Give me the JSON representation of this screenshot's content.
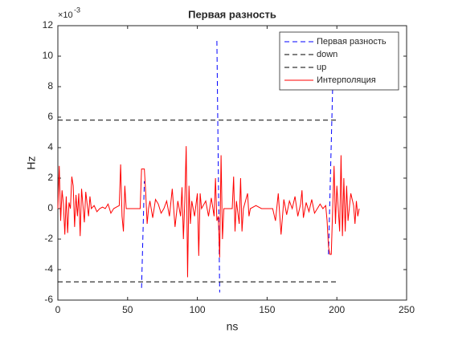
{
  "chart_data": {
    "type": "line",
    "title": "Первая разность",
    "xlabel": "ns",
    "ylabel": "Hz",
    "exponent_base": "×10",
    "exponent_power": "-3",
    "xlim": [
      0,
      250
    ],
    "xticks": [
      0,
      50,
      100,
      150,
      200,
      250
    ],
    "ylim": [
      -6,
      12
    ],
    "yticks": [
      -6,
      -4,
      -2,
      0,
      2,
      4,
      6,
      8,
      10,
      12
    ],
    "grid": false,
    "legend": "northeast",
    "series": [
      {
        "name": "Первая разность",
        "color": "#0000ff",
        "style": "dashed",
        "x": [
          60,
          62,
          null,
          114,
          116,
          null,
          194,
          197
        ],
        "values": [
          -5.2,
          1.8,
          null,
          11,
          -5.5,
          null,
          -3,
          8
        ]
      },
      {
        "name": "down",
        "color": "#000000",
        "style": "dashed",
        "x": [
          0,
          200
        ],
        "values": [
          -4.8,
          -4.8
        ]
      },
      {
        "name": "up",
        "color": "#000000",
        "style": "dashed",
        "x": [
          0,
          200
        ],
        "values": [
          5.8,
          5.8
        ]
      },
      {
        "name": "Интерполяция",
        "color": "#ff0000",
        "style": "solid",
        "x": [
          0,
          1,
          2,
          3,
          4,
          5,
          6,
          7,
          8,
          9,
          10,
          11,
          12,
          13,
          14,
          15,
          16,
          17,
          18,
          19,
          20,
          21,
          22,
          23,
          24,
          26,
          28,
          30,
          32,
          34,
          36,
          38,
          40,
          42,
          44,
          45,
          46,
          47,
          48,
          49,
          50,
          55,
          59,
          60,
          62,
          63,
          64,
          65,
          66,
          68,
          70,
          72,
          74,
          76,
          78,
          80,
          82,
          84,
          86,
          88,
          89,
          90,
          91,
          92,
          93,
          94,
          95,
          96,
          98,
          100,
          101,
          102,
          103,
          106,
          108,
          110,
          112,
          113,
          114,
          115,
          116,
          117,
          118,
          119,
          122,
          125,
          126,
          127,
          128,
          130,
          131,
          132,
          133,
          136,
          137,
          138,
          142,
          146,
          150,
          154,
          156,
          158,
          160,
          162,
          164,
          166,
          168,
          170,
          172,
          174,
          175,
          176,
          178,
          180,
          182,
          184,
          186,
          188,
          190,
          192,
          193,
          194,
          195,
          196,
          197,
          198,
          199,
          200,
          202,
          203,
          204,
          205,
          206,
          207,
          208,
          210,
          212,
          213,
          214,
          215,
          216
        ],
        "values": [
          0,
          2.8,
          -0.8,
          1.2,
          0.3,
          -1.7,
          0.8,
          -1.6,
          0.4,
          0,
          2.1,
          1.5,
          -1.2,
          0.9,
          -0.5,
          1.0,
          -1.8,
          1.3,
          0.2,
          -0.9,
          1.1,
          0.3,
          -0.5,
          0.8,
          0,
          0.2,
          -0.2,
          0,
          0.1,
          0,
          0.3,
          -0.3,
          0,
          0.1,
          0.2,
          2.9,
          -0.5,
          -1.5,
          1.5,
          0,
          0,
          0,
          0,
          2.6,
          2.6,
          1.0,
          -1.0,
          0,
          0.5,
          -0.6,
          0.6,
          0.3,
          -0.3,
          0,
          0.5,
          -0.5,
          1.3,
          -1.2,
          0.5,
          -0.5,
          1.4,
          -2.0,
          0.5,
          4.1,
          -4.5,
          1.5,
          -1.0,
          0.5,
          -0.5,
          1.0,
          -3.1,
          1.0,
          0,
          0.5,
          -0.5,
          0.7,
          -0.5,
          2.0,
          -0.8,
          -0.5,
          -3.2,
          3.5,
          -2.0,
          0,
          0,
          0,
          2.1,
          -1.5,
          0.5,
          -1.0,
          2.0,
          -1.5,
          0,
          1.0,
          -0.5,
          0,
          0.2,
          0,
          0,
          0,
          -0.8,
          1.0,
          -1.7,
          0.6,
          -0.4,
          0.5,
          0,
          0.8,
          -0.5,
          0.3,
          1.2,
          -0.6,
          0.4,
          -0.2,
          0.6,
          -0.3,
          0,
          0.3,
          0,
          0.2,
          -0.8,
          -2.5,
          -3.0,
          -3.0,
          0,
          2.8,
          -1.0,
          1.5,
          -1.5,
          3.5,
          -1.8,
          2.0,
          -1.5,
          1.5,
          -0.8,
          1.0,
          0.2,
          -1.0,
          0.5,
          -0.5,
          0
        ]
      }
    ]
  }
}
